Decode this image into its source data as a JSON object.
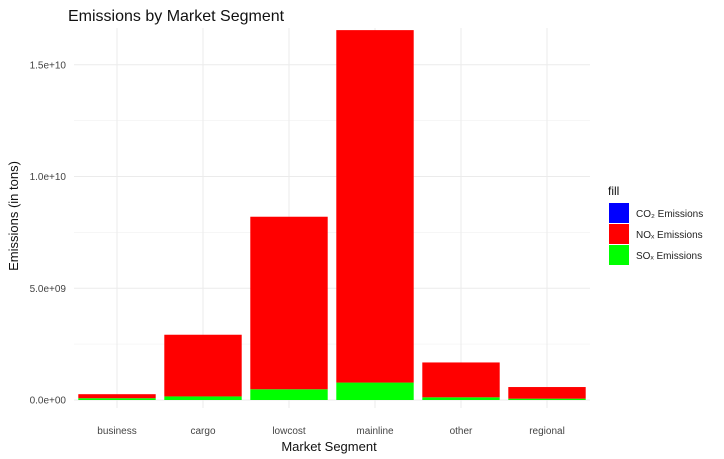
{
  "chart_data": {
    "type": "bar",
    "stacked": true,
    "title": "Emissions by Market Segment",
    "xlabel": "Market Segment",
    "ylabel": "Emissions (in tons)",
    "categories": [
      "business",
      "cargo",
      "lowcost",
      "mainline",
      "other",
      "regional"
    ],
    "ylim": [
      0,
      16600000000
    ],
    "yticks": [
      0,
      5000000000,
      10000000000,
      15000000000
    ],
    "ytick_labels": [
      "0.0e+00",
      "5.0e+09",
      "1.0e+10",
      "1.5e+10"
    ],
    "grid": true,
    "legend": {
      "title": "fill",
      "position": "right"
    },
    "series": [
      {
        "name": "CO₂ Emissions",
        "color": "#0000ff",
        "values": [
          0,
          0,
          0,
          0,
          0,
          0
        ]
      },
      {
        "name": "SOₓ Emissions",
        "color": "#00ff00",
        "values": [
          80000000,
          160000000,
          480000000,
          780000000,
          120000000,
          60000000
        ]
      },
      {
        "name": "NOₓ Emissions",
        "color": "#ff0000",
        "values": [
          180000000,
          2760000000,
          7720000000,
          15770000000,
          1560000000,
          520000000
        ]
      }
    ],
    "legend_order": [
      "CO₂ Emissions",
      "NOₓ Emissions",
      "SOₓ Emissions"
    ]
  }
}
